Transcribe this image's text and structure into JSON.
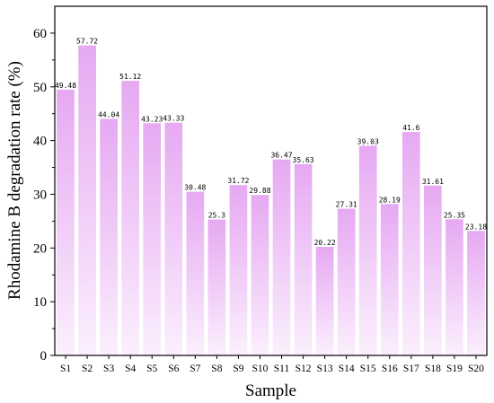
{
  "chart_data": {
    "type": "bar",
    "xlabel": "Sample",
    "ylabel": "Rhodamine B degradation rate (%)",
    "ylim": [
      0,
      65
    ],
    "yticks": [
      0,
      10,
      20,
      30,
      40,
      50,
      60
    ],
    "grid": false,
    "legend": "none",
    "bar_gradient": {
      "top": "#e6a9f2",
      "bottom": "#fbeffd"
    },
    "categories": [
      "S1",
      "S2",
      "S3",
      "S4",
      "S5",
      "S6",
      "S7",
      "S8",
      "S9",
      "S10",
      "S11",
      "S12",
      "S13",
      "S14",
      "S15",
      "S16",
      "S17",
      "S18",
      "S19",
      "S20"
    ],
    "values": [
      49.48,
      57.72,
      44.04,
      51.12,
      43.23,
      43.33,
      30.48,
      25.3,
      31.72,
      29.88,
      36.47,
      35.63,
      20.22,
      27.31,
      39.03,
      28.19,
      41.6,
      31.61,
      25.35,
      23.18
    ],
    "data_labels": [
      "49.48",
      "57.72",
      "44.04",
      "51.12",
      "43.23",
      "43.33",
      "30.48",
      "25.3",
      "31.72",
      "29.88",
      "36.47",
      "35.63",
      "20.22",
      "27.31",
      "39.03",
      "28.19",
      "41.6",
      "31.61",
      "25.35",
      "23.18"
    ]
  }
}
